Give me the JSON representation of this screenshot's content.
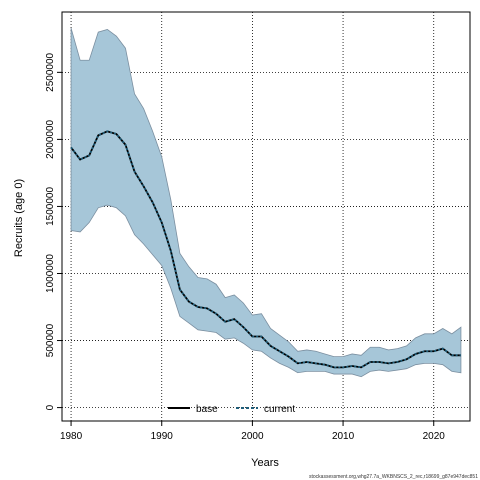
{
  "chart_data": {
    "type": "line",
    "xlabel": "Years",
    "ylabel": "Recruits (age 0)",
    "xlim": [
      1979,
      2024
    ],
    "ylim": [
      -100000,
      2950000
    ],
    "x_ticks": [
      1980,
      1990,
      2000,
      2010,
      2020
    ],
    "y_ticks": [
      0,
      500000,
      1000000,
      1500000,
      2000000,
      2500000
    ],
    "grid": true,
    "legend_position": "bottom-center",
    "x": [
      1980,
      1981,
      1982,
      1983,
      1984,
      1985,
      1986,
      1987,
      1988,
      1989,
      1990,
      1991,
      1992,
      1993,
      1994,
      1995,
      1996,
      1997,
      1998,
      1999,
      2000,
      2001,
      2002,
      2003,
      2004,
      2005,
      2006,
      2007,
      2008,
      2009,
      2010,
      2011,
      2012,
      2013,
      2014,
      2015,
      2016,
      2017,
      2018,
      2019,
      2020,
      2021,
      2022,
      2023
    ],
    "series": [
      {
        "name": "base",
        "values": [
          1940000,
          1850000,
          1880000,
          2030000,
          2060000,
          2040000,
          1960000,
          1760000,
          1650000,
          1530000,
          1380000,
          1170000,
          880000,
          790000,
          750000,
          740000,
          700000,
          640000,
          660000,
          600000,
          530000,
          530000,
          460000,
          420000,
          380000,
          330000,
          340000,
          330000,
          320000,
          300000,
          300000,
          310000,
          300000,
          340000,
          340000,
          330000,
          340000,
          360000,
          400000,
          420000,
          420000,
          440000,
          390000,
          390000
        ]
      },
      {
        "name": "current",
        "values": [
          1940000,
          1850000,
          1880000,
          2030000,
          2060000,
          2040000,
          1960000,
          1760000,
          1650000,
          1530000,
          1380000,
          1170000,
          880000,
          790000,
          750000,
          740000,
          700000,
          640000,
          660000,
          600000,
          530000,
          530000,
          460000,
          420000,
          380000,
          330000,
          340000,
          330000,
          320000,
          300000,
          300000,
          310000,
          300000,
          340000,
          340000,
          330000,
          340000,
          360000,
          400000,
          420000,
          420000,
          440000,
          390000,
          390000
        ]
      }
    ],
    "band": {
      "lower": [
        1320000,
        1310000,
        1380000,
        1490000,
        1510000,
        1490000,
        1430000,
        1290000,
        1220000,
        1140000,
        1060000,
        890000,
        680000,
        630000,
        580000,
        570000,
        560000,
        510000,
        520000,
        480000,
        430000,
        420000,
        370000,
        330000,
        300000,
        260000,
        270000,
        270000,
        270000,
        250000,
        250000,
        250000,
        230000,
        270000,
        280000,
        270000,
        280000,
        290000,
        320000,
        330000,
        330000,
        320000,
        270000,
        260000
      ],
      "upper": [
        2830000,
        2590000,
        2590000,
        2800000,
        2820000,
        2770000,
        2680000,
        2340000,
        2230000,
        2060000,
        1870000,
        1550000,
        1150000,
        1050000,
        970000,
        960000,
        920000,
        820000,
        840000,
        780000,
        690000,
        700000,
        590000,
        540000,
        490000,
        420000,
        430000,
        420000,
        400000,
        380000,
        380000,
        400000,
        390000,
        450000,
        450000,
        430000,
        440000,
        460000,
        520000,
        550000,
        550000,
        590000,
        550000,
        600000
      ],
      "color": "#a6c6d8",
      "edge_color": "#7b8fa0"
    },
    "colors": {
      "base": "#000000",
      "current": "#1f5e7a"
    }
  },
  "footer_text": "stockassessment.org,whg27.7a_WKBNSCS_2_rec,r18699_g87e947dec851"
}
